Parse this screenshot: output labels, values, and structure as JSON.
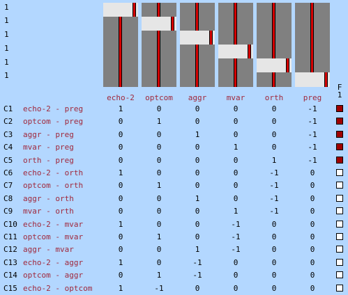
{
  "ev_labels": [
    "1",
    "1",
    "1",
    "1",
    "1",
    "1"
  ],
  "columns": [
    "echo-2",
    "optcom",
    "aggr",
    "mvar",
    "orth",
    "preg"
  ],
  "f_header": "F\n1",
  "f_header_letter": "F",
  "f_header_num": "1",
  "colors": {
    "background": "#b3d7ff",
    "matrix_gray": "#808080",
    "matrix_light": "#e6e6e6",
    "red": "#d40000",
    "label_text": "#a0283c",
    "f_on": "#a00000"
  },
  "contrasts": [
    {
      "id": "C1",
      "name": "echo-2 - preg",
      "values": [
        "1",
        "0",
        "0",
        "0",
        "0",
        "-1"
      ],
      "f": true
    },
    {
      "id": "C2",
      "name": "optcom - preg",
      "values": [
        "0",
        "1",
        "0",
        "0",
        "0",
        "-1"
      ],
      "f": true
    },
    {
      "id": "C3",
      "name": "aggr - preg",
      "values": [
        "0",
        "0",
        "1",
        "0",
        "0",
        "-1"
      ],
      "f": true
    },
    {
      "id": "C4",
      "name": "mvar - preg",
      "values": [
        "0",
        "0",
        "0",
        "1",
        "0",
        "-1"
      ],
      "f": true
    },
    {
      "id": "C5",
      "name": "orth - preg",
      "values": [
        "0",
        "0",
        "0",
        "0",
        "1",
        "-1"
      ],
      "f": true
    },
    {
      "id": "C6",
      "name": "echo-2 - orth",
      "values": [
        "1",
        "0",
        "0",
        "0",
        "-1",
        "0"
      ],
      "f": false
    },
    {
      "id": "C7",
      "name": "optcom - orth",
      "values": [
        "0",
        "1",
        "0",
        "0",
        "-1",
        "0"
      ],
      "f": false
    },
    {
      "id": "C8",
      "name": "aggr - orth",
      "values": [
        "0",
        "0",
        "1",
        "0",
        "-1",
        "0"
      ],
      "f": false
    },
    {
      "id": "C9",
      "name": "mvar - orth",
      "values": [
        "0",
        "0",
        "0",
        "1",
        "-1",
        "0"
      ],
      "f": false
    },
    {
      "id": "C10",
      "name": "echo-2 - mvar",
      "values": [
        "1",
        "0",
        "0",
        "-1",
        "0",
        "0"
      ],
      "f": false
    },
    {
      "id": "C11",
      "name": "optcom - mvar",
      "values": [
        "0",
        "1",
        "0",
        "-1",
        "0",
        "0"
      ],
      "f": false
    },
    {
      "id": "C12",
      "name": "aggr - mvar",
      "values": [
        "0",
        "0",
        "1",
        "-1",
        "0",
        "0"
      ],
      "f": false
    },
    {
      "id": "C13",
      "name": "echo-2 - aggr",
      "values": [
        "1",
        "0",
        "-1",
        "0",
        "0",
        "0"
      ],
      "f": false
    },
    {
      "id": "C14",
      "name": "optcom - aggr",
      "values": [
        "0",
        "1",
        "-1",
        "0",
        "0",
        "0"
      ],
      "f": false
    },
    {
      "id": "C15",
      "name": "echo-2 - optcom",
      "values": [
        "1",
        "-1",
        "0",
        "0",
        "0",
        "0"
      ],
      "f": false
    }
  ]
}
